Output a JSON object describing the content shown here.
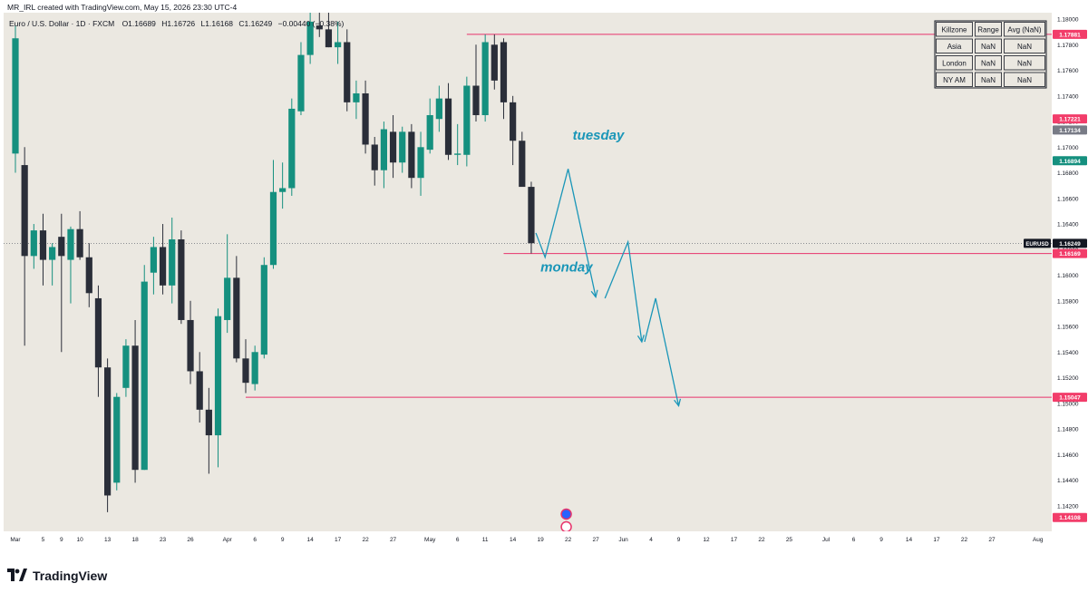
{
  "credit": "MR_IRL created with TradingView.com, May 15, 2026 23:30 UTC-4",
  "brand": {
    "name": "TradingView",
    "icon": "tradingview-logo-icon"
  },
  "chart_data": {
    "type": "candlestick",
    "symbol_ticker": "EURUSD",
    "legend": {
      "name": "Euro / U.S. Dollar · 1D · FXCM",
      "open": "O1.16689",
      "high": "H1.16726",
      "low": "L1.16168",
      "close": "C1.16249",
      "change": "−0.00440 (−0.38%)"
    },
    "yticks": [
      1.18,
      1.178,
      1.176,
      1.174,
      1.172,
      1.17,
      1.168,
      1.166,
      1.164,
      1.162,
      1.16,
      1.158,
      1.156,
      1.154,
      1.152,
      1.15,
      1.148,
      1.146,
      1.144,
      1.142
    ],
    "xticks": [
      {
        "i": 0,
        "label": "Mar"
      },
      {
        "i": 3,
        "label": "5"
      },
      {
        "i": 5,
        "label": "9"
      },
      {
        "i": 7,
        "label": "10"
      },
      {
        "i": 10,
        "label": "13"
      },
      {
        "i": 13,
        "label": "18"
      },
      {
        "i": 16,
        "label": "23"
      },
      {
        "i": 19,
        "label": "26"
      },
      {
        "i": 23,
        "label": "Apr"
      },
      {
        "i": 26,
        "label": "6"
      },
      {
        "i": 29,
        "label": "9"
      },
      {
        "i": 32,
        "label": "14"
      },
      {
        "i": 35,
        "label": "17"
      },
      {
        "i": 38,
        "label": "22"
      },
      {
        "i": 41,
        "label": "27"
      },
      {
        "i": 45,
        "label": "May"
      },
      {
        "i": 48,
        "label": "6"
      },
      {
        "i": 51,
        "label": "11"
      },
      {
        "i": 54,
        "label": "14"
      },
      {
        "i": 57,
        "label": "19"
      },
      {
        "i": 60,
        "label": "22"
      },
      {
        "i": 63,
        "label": "27"
      },
      {
        "i": 66,
        "label": "Jun"
      },
      {
        "i": 69,
        "label": "4"
      },
      {
        "i": 72,
        "label": "9"
      },
      {
        "i": 75,
        "label": "12"
      },
      {
        "i": 78,
        "label": "17"
      },
      {
        "i": 81,
        "label": "22"
      },
      {
        "i": 84,
        "label": "25"
      },
      {
        "i": 88,
        "label": "Jul"
      },
      {
        "i": 91,
        "label": "6"
      },
      {
        "i": 94,
        "label": "9"
      },
      {
        "i": 97,
        "label": "14"
      },
      {
        "i": 100,
        "label": "17"
      },
      {
        "i": 103,
        "label": "22"
      },
      {
        "i": 106,
        "label": "27"
      },
      {
        "i": 111,
        "label": "Aug"
      }
    ],
    "candles": [
      [
        1.1695,
        1.1795,
        1.168,
        1.1785
      ],
      [
        1.1686,
        1.17,
        1.1545,
        1.1615
      ],
      [
        1.1615,
        1.164,
        1.1605,
        1.1635
      ],
      [
        1.1635,
        1.1648,
        1.1592,
        1.1612
      ],
      [
        1.1612,
        1.1625,
        1.1592,
        1.1622
      ],
      [
        1.163,
        1.1648,
        1.154,
        1.1615
      ],
      [
        1.1612,
        1.1638,
        1.1578,
        1.1636
      ],
      [
        1.1636,
        1.165,
        1.1612,
        1.1614
      ],
      [
        1.1614,
        1.1625,
        1.1575,
        1.1586
      ],
      [
        1.1582,
        1.1592,
        1.1505,
        1.1528
      ],
      [
        1.1528,
        1.1535,
        1.1415,
        1.1428
      ],
      [
        1.1438,
        1.1508,
        1.1432,
        1.1505
      ],
      [
        1.1512,
        1.155,
        1.1505,
        1.1545
      ],
      [
        1.1545,
        1.1565,
        1.1438,
        1.1448
      ],
      [
        1.1448,
        1.1608,
        1.1448,
        1.1595
      ],
      [
        1.1602,
        1.163,
        1.1585,
        1.1622
      ],
      [
        1.1622,
        1.164,
        1.1585,
        1.1592
      ],
      [
        1.1592,
        1.1645,
        1.1578,
        1.1628
      ],
      [
        1.1628,
        1.1635,
        1.1562,
        1.1565
      ],
      [
        1.1565,
        1.158,
        1.1515,
        1.1525
      ],
      [
        1.1525,
        1.154,
        1.1485,
        1.1495
      ],
      [
        1.1495,
        1.1512,
        1.1445,
        1.1475
      ],
      [
        1.1475,
        1.1574,
        1.145,
        1.1568
      ],
      [
        1.1565,
        1.1632,
        1.1555,
        1.1598
      ],
      [
        1.1598,
        1.1615,
        1.1532,
        1.1535
      ],
      [
        1.1535,
        1.155,
        1.1508,
        1.1516
      ],
      [
        1.1515,
        1.1545,
        1.151,
        1.154
      ],
      [
        1.1538,
        1.1614,
        1.1535,
        1.1608
      ],
      [
        1.1608,
        1.169,
        1.1605,
        1.1665
      ],
      [
        1.1665,
        1.1688,
        1.1652,
        1.1668
      ],
      [
        1.1668,
        1.1738,
        1.1662,
        1.173
      ],
      [
        1.1728,
        1.1782,
        1.1725,
        1.1772
      ],
      [
        1.1772,
        1.1818,
        1.1765,
        1.1798
      ],
      [
        1.1795,
        1.181,
        1.1786,
        1.1792
      ],
      [
        1.1792,
        1.1808,
        1.1778,
        1.1778
      ],
      [
        1.1778,
        1.1798,
        1.1765,
        1.1782
      ],
      [
        1.1782,
        1.1792,
        1.1728,
        1.1735
      ],
      [
        1.1735,
        1.1752,
        1.1722,
        1.1742
      ],
      [
        1.1742,
        1.1752,
        1.1695,
        1.1702
      ],
      [
        1.1702,
        1.1708,
        1.167,
        1.1682
      ],
      [
        1.1682,
        1.172,
        1.1668,
        1.1714
      ],
      [
        1.1712,
        1.1725,
        1.1676,
        1.1688
      ],
      [
        1.1688,
        1.1716,
        1.168,
        1.1712
      ],
      [
        1.1712,
        1.1718,
        1.1668,
        1.1676
      ],
      [
        1.1676,
        1.1712,
        1.1662,
        1.17
      ],
      [
        1.1698,
        1.1738,
        1.1695,
        1.1725
      ],
      [
        1.1722,
        1.1748,
        1.1712,
        1.1738
      ],
      [
        1.1738,
        1.175,
        1.169,
        1.1694
      ],
      [
        1.1694,
        1.1718,
        1.1686,
        1.1695
      ],
      [
        1.1694,
        1.1755,
        1.1685,
        1.1748
      ],
      [
        1.1748,
        1.178,
        1.172,
        1.1725
      ],
      [
        1.1725,
        1.1788,
        1.172,
        1.1782
      ],
      [
        1.178,
        1.1788,
        1.1745,
        1.1752
      ],
      [
        1.1782,
        1.1785,
        1.1722,
        1.1735
      ],
      [
        1.1735,
        1.174,
        1.1686,
        1.1705
      ],
      [
        1.1705,
        1.1712,
        1.1672,
        1.1669
      ],
      [
        1.1669,
        1.1673,
        1.1617,
        1.1625
      ]
    ],
    "bull_color": "#15907f",
    "bear_color": "#2a2e39",
    "last_price_line": 1.16249,
    "levels": [
      {
        "value": 1.17881,
        "start": 49
      },
      {
        "value": 1.16169,
        "start": 53
      },
      {
        "value": 1.15047,
        "start": 25
      }
    ],
    "price_labels": [
      {
        "value": 1.17881,
        "text": "1.17881",
        "color": "#f23d6a"
      },
      {
        "value": 1.17221,
        "text": "1.17221",
        "color": "#f23d6a"
      },
      {
        "value": 1.17134,
        "text": "1.17134",
        "color": "#787b86"
      },
      {
        "value": 1.16894,
        "text": "1.16894",
        "color": "#15907f"
      },
      {
        "value": 1.16249,
        "text": "1.16249",
        "color": "#131722",
        "ticker": "EURUSD"
      },
      {
        "value": 1.16169,
        "text": "1.16169",
        "color": "#f23d6a"
      },
      {
        "value": 1.15047,
        "text": "1.15047",
        "color": "#f23d6a"
      },
      {
        "value": 1.14108,
        "text": "1.14108",
        "color": "#f23d6a"
      }
    ],
    "projection": {
      "color": "#1a96b8",
      "paths": [
        [
          [
            56.5,
            1.1633
          ],
          [
            57.5,
            1.1614
          ],
          [
            60.0,
            1.1683
          ],
          [
            63.0,
            1.1583
          ]
        ],
        [
          [
            64.0,
            1.1582
          ],
          [
            66.5,
            1.1626
          ],
          [
            68.0,
            1.1548
          ]
        ],
        [
          [
            68.3,
            1.1548
          ],
          [
            69.5,
            1.1582
          ],
          [
            72.0,
            1.1498
          ]
        ]
      ],
      "labels": [
        {
          "text": "tuesday",
          "i": 60.5,
          "value": 1.1706
        },
        {
          "text": "monday",
          "i": 57.0,
          "value": 1.1603
        }
      ]
    },
    "killzone_table": {
      "headers": [
        "Killzone",
        "Range",
        "Avg (NaN)"
      ],
      "rows": [
        [
          "Asia",
          "NaN",
          "NaN"
        ],
        [
          "London",
          "NaN",
          "NaN"
        ],
        [
          "NY AM",
          "NaN",
          "NaN"
        ]
      ]
    },
    "event_icons": [
      {
        "i": 59.8,
        "name": "flag-icon"
      },
      {
        "i": 59.8,
        "name": "us-flag-icon"
      }
    ]
  }
}
